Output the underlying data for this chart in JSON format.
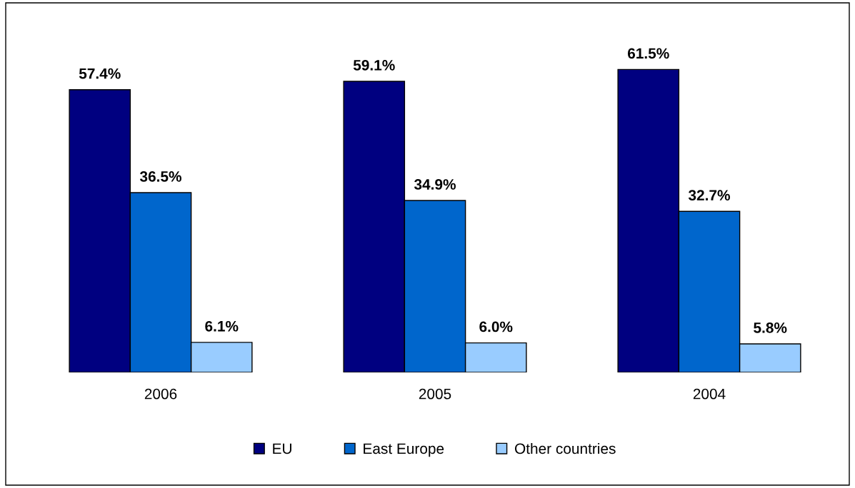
{
  "chart_data": {
    "type": "bar",
    "categories": [
      "2006",
      "2005",
      "2004"
    ],
    "series": [
      {
        "name": "EU",
        "color": "#000080",
        "values": [
          57.4,
          59.1,
          61.5
        ],
        "value_labels": [
          "57.4%",
          "59.1%",
          "61.5%"
        ]
      },
      {
        "name": "East Europe",
        "color": "#0066cc",
        "values": [
          36.5,
          34.9,
          32.7
        ],
        "value_labels": [
          "36.5%",
          "34.9%",
          "32.7%"
        ]
      },
      {
        "name": "Other countries",
        "color": "#99ccff",
        "values": [
          6.1,
          6.0,
          5.8
        ],
        "value_labels": [
          "6.1%",
          "6.0%",
          "5.8%"
        ]
      }
    ],
    "legend": "bottom",
    "grid": false
  }
}
